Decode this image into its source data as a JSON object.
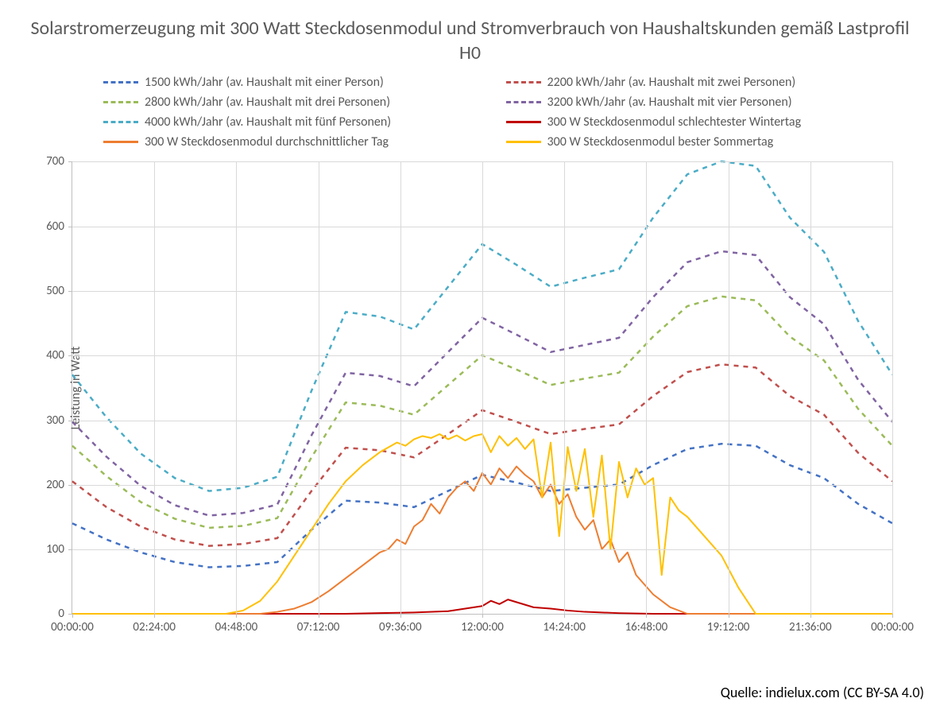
{
  "chart": {
    "type": "line",
    "title": "Solarstromerzeugung mit 300 Watt Steckdosenmodul und Stromverbrauch von Haushaltskunden gemäß Lastprofil H0",
    "title_fontsize": 24,
    "title_color": "#595959",
    "ylabel": "Leistung in Watt",
    "ylabel_fontsize": 16,
    "background_color": "#ffffff",
    "grid_color": "#d9d9d9",
    "axis_color": "#bfbfbf",
    "tick_label_color": "#595959",
    "tick_label_fontsize": 15,
    "ylim": [
      0,
      700
    ],
    "ytick_step": 100,
    "yticks": [
      0,
      100,
      200,
      300,
      400,
      500,
      600,
      700
    ],
    "x_domain_minutes": [
      0,
      1440
    ],
    "xtick_minutes": [
      0,
      144,
      288,
      432,
      576,
      720,
      864,
      1008,
      1152,
      1296,
      1440
    ],
    "xtick_labels": [
      "00:00:00",
      "02:24:00",
      "04:48:00",
      "07:12:00",
      "09:36:00",
      "12:00:00",
      "14:24:00",
      "16:48:00",
      "19:12:00",
      "21:36:00",
      "00:00:00"
    ],
    "line_width_dashed": 2.5,
    "line_width_solid": 2,
    "dash_pattern": "6,6",
    "legend_fontsize": 16,
    "legend_text_color": "#595959",
    "source": "Quelle: indielux.com (CC BY-SA 4.0)",
    "series": [
      {
        "id": "h1500",
        "label": "1500 kWh/Jahr (av. Haushalt mit einer Person)",
        "color": "#4472c4",
        "style": "dashed",
        "x": [
          0,
          60,
          120,
          180,
          240,
          300,
          360,
          420,
          480,
          540,
          600,
          660,
          720,
          780,
          840,
          900,
          960,
          1020,
          1080,
          1140,
          1200,
          1260,
          1320,
          1380,
          1440
        ],
        "y": [
          140,
          115,
          95,
          80,
          72,
          74,
          80,
          130,
          175,
          172,
          165,
          190,
          215,
          203,
          190,
          195,
          200,
          230,
          255,
          263,
          260,
          230,
          210,
          170,
          140
        ]
      },
      {
        "id": "h2200",
        "label": "2200 kWh/Jahr (av. Haushalt mit zwei Personen)",
        "color": "#c0504d",
        "style": "dashed",
        "x": [
          0,
          60,
          120,
          180,
          240,
          300,
          360,
          420,
          480,
          540,
          600,
          660,
          720,
          780,
          840,
          900,
          960,
          1020,
          1080,
          1140,
          1200,
          1260,
          1320,
          1380,
          1440
        ],
        "y": [
          205,
          165,
          135,
          115,
          105,
          108,
          117,
          190,
          257,
          253,
          242,
          278,
          315,
          297,
          278,
          286,
          293,
          337,
          374,
          386,
          381,
          337,
          308,
          249,
          205
        ]
      },
      {
        "id": "h2800",
        "label": "2800 kWh/Jahr (av. Haushalt mit drei Personen)",
        "color": "#9bbb59",
        "style": "dashed",
        "x": [
          0,
          60,
          120,
          180,
          240,
          300,
          360,
          420,
          480,
          540,
          600,
          660,
          720,
          780,
          840,
          900,
          960,
          1020,
          1080,
          1140,
          1200,
          1260,
          1320,
          1380,
          1440
        ],
        "y": [
          260,
          213,
          173,
          147,
          133,
          136,
          148,
          242,
          327,
          322,
          308,
          354,
          400,
          378,
          354,
          364,
          373,
          429,
          476,
          491,
          485,
          429,
          392,
          317,
          260
        ]
      },
      {
        "id": "h3200",
        "label": "3200 kWh/Jahr (av. Haushalt mit vier Personen)",
        "color": "#8064a2",
        "style": "dashed",
        "x": [
          0,
          60,
          120,
          180,
          240,
          300,
          360,
          420,
          480,
          540,
          600,
          660,
          720,
          780,
          840,
          900,
          960,
          1020,
          1080,
          1140,
          1200,
          1260,
          1320,
          1380,
          1440
        ],
        "y": [
          297,
          243,
          198,
          168,
          152,
          156,
          169,
          276,
          373,
          368,
          352,
          405,
          458,
          432,
          405,
          416,
          427,
          490,
          544,
          561,
          555,
          490,
          448,
          362,
          297
        ]
      },
      {
        "id": "h4000",
        "label": "4000 kWh/Jahr (av. Haushalt mit fünf Personen)",
        "color": "#4bacc6",
        "style": "dashed",
        "x": [
          0,
          60,
          120,
          180,
          240,
          300,
          360,
          420,
          480,
          540,
          600,
          660,
          720,
          780,
          840,
          900,
          960,
          1020,
          1080,
          1140,
          1200,
          1260,
          1320,
          1380,
          1440
        ],
        "y": [
          370,
          304,
          248,
          210,
          190,
          195,
          212,
          345,
          467,
          460,
          440,
          506,
          572,
          540,
          506,
          520,
          533,
          613,
          680,
          700,
          693,
          613,
          560,
          453,
          370
        ]
      },
      {
        "id": "winter",
        "label": "300 W Steckdosenmodul schlechtester Wintertag",
        "color": "#c00000",
        "style": "solid",
        "x": [
          0,
          480,
          540,
          600,
          660,
          690,
          720,
          735,
          750,
          765,
          780,
          795,
          810,
          840,
          870,
          900,
          960,
          1020,
          1440
        ],
        "y": [
          0,
          0,
          1,
          2,
          4,
          8,
          12,
          20,
          15,
          22,
          18,
          14,
          10,
          8,
          5,
          3,
          1,
          0,
          0
        ]
      },
      {
        "id": "average",
        "label": "300 W Steckdosenmodul durchschnittlicher Tag",
        "color": "#ed7d31",
        "style": "solid",
        "x": [
          0,
          330,
          360,
          390,
          420,
          450,
          480,
          510,
          540,
          555,
          570,
          585,
          600,
          615,
          630,
          645,
          660,
          675,
          690,
          705,
          720,
          735,
          750,
          765,
          780,
          795,
          810,
          825,
          840,
          855,
          870,
          885,
          900,
          915,
          930,
          945,
          960,
          975,
          990,
          1020,
          1050,
          1080,
          1440
        ],
        "y": [
          0,
          0,
          3,
          8,
          18,
          35,
          55,
          75,
          95,
          100,
          115,
          108,
          135,
          145,
          170,
          155,
          180,
          195,
          205,
          190,
          218,
          200,
          225,
          210,
          228,
          215,
          205,
          180,
          200,
          170,
          185,
          150,
          130,
          145,
          100,
          115,
          80,
          95,
          60,
          30,
          10,
          0,
          0
        ]
      },
      {
        "id": "summer",
        "label": "300 W Steckdosenmodul bester Sommertag",
        "color": "#ffc000",
        "style": "solid",
        "x": [
          0,
          270,
          300,
          330,
          360,
          390,
          420,
          450,
          480,
          510,
          540,
          570,
          585,
          600,
          615,
          630,
          645,
          660,
          675,
          690,
          705,
          720,
          735,
          750,
          765,
          780,
          795,
          810,
          825,
          840,
          855,
          870,
          885,
          900,
          915,
          930,
          945,
          960,
          975,
          990,
          1005,
          1020,
          1035,
          1050,
          1065,
          1080,
          1110,
          1140,
          1170,
          1200,
          1440
        ],
        "y": [
          0,
          0,
          5,
          20,
          50,
          90,
          130,
          170,
          205,
          230,
          250,
          265,
          260,
          270,
          275,
          272,
          278,
          270,
          276,
          268,
          275,
          278,
          250,
          275,
          260,
          272,
          255,
          270,
          180,
          265,
          120,
          258,
          190,
          255,
          150,
          245,
          100,
          235,
          180,
          225,
          200,
          210,
          60,
          180,
          160,
          150,
          120,
          90,
          40,
          0,
          0
        ]
      }
    ]
  }
}
